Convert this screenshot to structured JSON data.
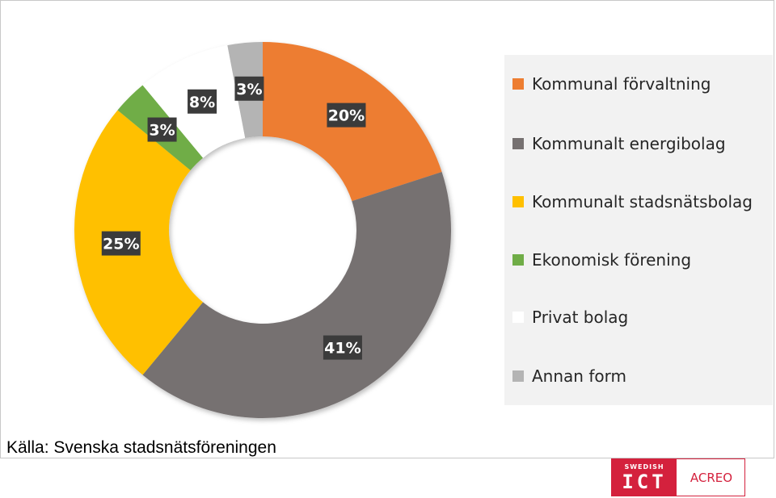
{
  "chart_data": {
    "type": "pie",
    "title": "",
    "categories": [
      "Kommunal förvaltning",
      "Kommunalt energibolag",
      "Kommunalt stadsnätsbolag",
      "Ekonomisk förening",
      "Privat bolag",
      "Annan form"
    ],
    "values": [
      20,
      41,
      25,
      3,
      8,
      3
    ],
    "value_labels": [
      "20%",
      "41%",
      "25%",
      "3%",
      "8%",
      "3%"
    ],
    "colors": [
      "#ed7d31",
      "#767171",
      "#ffc000",
      "#70ad47",
      "#ffffff",
      "#b4b4b4"
    ],
    "legend_position": "right",
    "donut": true
  },
  "source_note": "Källa: Svenska stadsnätsföreningen",
  "logo": {
    "small_text": "SWEDISH",
    "big_text": "ICT",
    "right_text": "ACREO"
  }
}
